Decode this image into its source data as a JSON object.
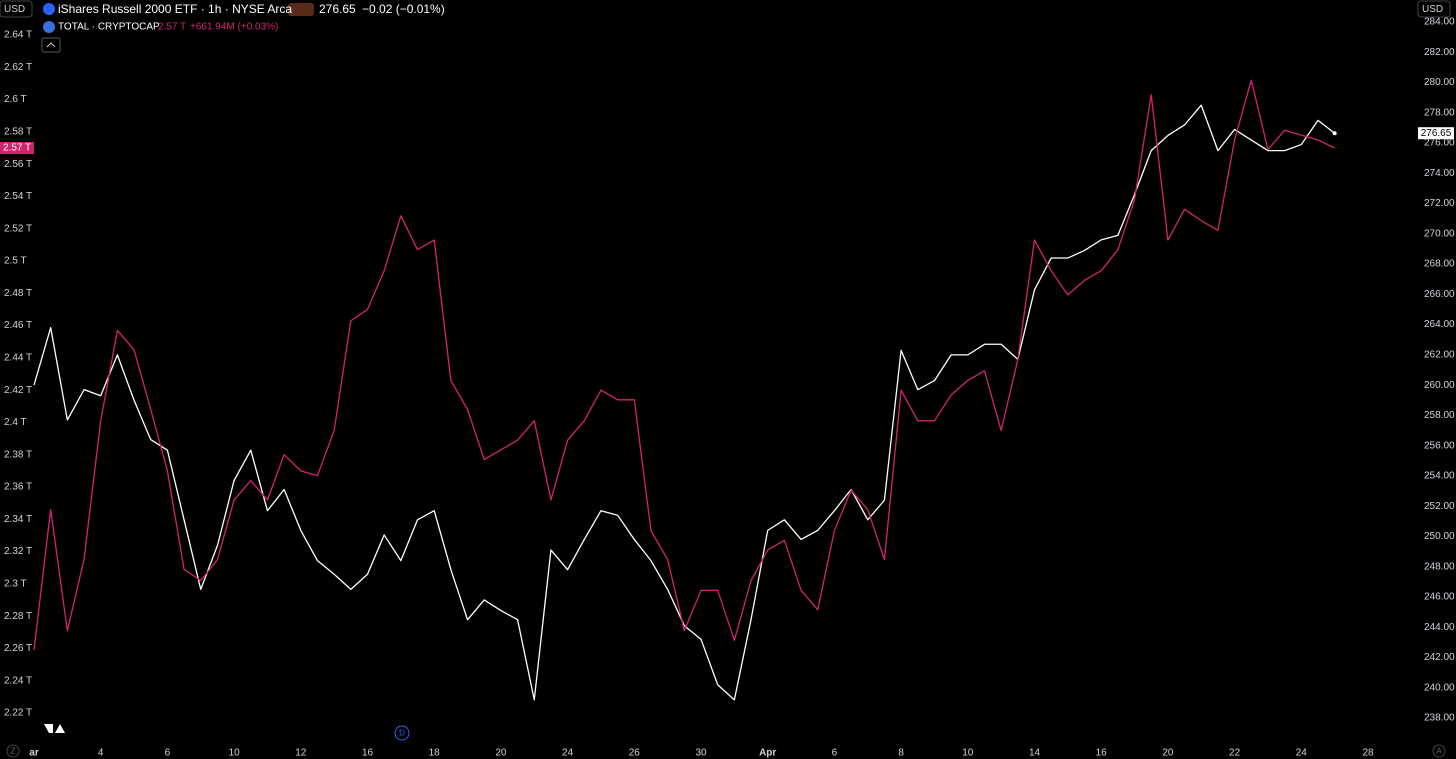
{
  "chart_data": {
    "type": "line",
    "currency": "USD",
    "categories": [
      "ar",
      null,
      null,
      null,
      "4",
      null,
      null,
      null,
      "6",
      null,
      null,
      null,
      "10",
      null,
      null,
      null,
      "12",
      null,
      null,
      null,
      "16",
      null,
      null,
      null,
      "18",
      null,
      null,
      null,
      "20",
      null,
      null,
      null,
      "24",
      null,
      null,
      null,
      "26",
      null,
      null,
      null,
      "30",
      null,
      null,
      null,
      "Apr",
      null,
      null,
      null,
      "6",
      null,
      null,
      null,
      "8",
      null,
      null,
      null,
      "10",
      null,
      null,
      null,
      "14",
      null,
      null,
      null,
      "16",
      null,
      null,
      null,
      "20",
      null,
      null,
      null,
      "22",
      null,
      null,
      null,
      "24",
      null,
      null,
      null,
      "28"
    ],
    "series": [
      {
        "name": "iShares Russell 2000 ETF · 1h · NYSE Arca",
        "color": "#ffffff",
        "axis": "y2",
        "last": 276.65,
        "change": "−0.02 (−0.01%)",
        "values": [
          260.0,
          263.8,
          257.7,
          259.7,
          259.3,
          262.0,
          259.0,
          256.4,
          255.7,
          251.1,
          246.5,
          249.4,
          253.7,
          255.7,
          251.7,
          253.1,
          250.4,
          248.4,
          247.5,
          246.5,
          247.5,
          250.1,
          248.4,
          251.1,
          251.7,
          247.8,
          244.5,
          245.8,
          245.1,
          244.5,
          239.2,
          249.1,
          247.8,
          249.8,
          251.7,
          251.4,
          249.8,
          248.4,
          246.5,
          244.1,
          243.2,
          240.2,
          239.2,
          244.5,
          250.4,
          251.1,
          249.8,
          250.4,
          251.7,
          253.1,
          251.1,
          252.4,
          262.3,
          259.7,
          260.3,
          262.0,
          262.0,
          262.7,
          262.7,
          261.7,
          266.3,
          268.4,
          268.4,
          268.9,
          269.6,
          269.9,
          272.6,
          275.5,
          276.5,
          277.2,
          278.5,
          275.5,
          276.9,
          276.2,
          275.5,
          275.5,
          275.9,
          277.5,
          276.65,
          null,
          null
        ]
      },
      {
        "name": "TOTAL · CRYPTOCAP",
        "color": "#d0256e",
        "axis": "y",
        "last": "2.57 T",
        "change": "+661.94M (+0.03%)",
        "values": [
          2.259,
          2.346,
          2.271,
          2.315,
          2.401,
          2.457,
          2.445,
          2.408,
          2.37,
          2.309,
          2.302,
          2.315,
          2.352,
          2.364,
          2.352,
          2.38,
          2.37,
          2.367,
          2.395,
          2.463,
          2.47,
          2.494,
          2.528,
          2.507,
          2.513,
          2.426,
          2.408,
          2.377,
          2.383,
          2.389,
          2.401,
          2.352,
          2.389,
          2.401,
          2.42,
          2.414,
          2.414,
          2.333,
          2.315,
          2.271,
          2.296,
          2.296,
          2.265,
          2.302,
          2.321,
          2.327,
          2.296,
          2.284,
          2.333,
          2.358,
          2.346,
          2.315,
          2.42,
          2.401,
          2.401,
          2.417,
          2.426,
          2.432,
          2.395,
          2.439,
          2.513,
          2.494,
          2.479,
          2.488,
          2.494,
          2.507,
          2.538,
          2.603,
          2.513,
          2.532,
          2.525,
          2.519,
          2.575,
          2.612,
          2.569,
          2.581,
          2.578,
          2.575,
          2.57,
          null,
          null
        ]
      }
    ],
    "ylim": [
      2.22,
      2.64
    ],
    "yticks": [
      {
        "value": 2.22,
        "label": "2.22 T"
      },
      {
        "value": 2.24,
        "label": "2.24 T"
      },
      {
        "value": 2.26,
        "label": "2.26 T"
      },
      {
        "value": 2.28,
        "label": "2.28 T"
      },
      {
        "value": 2.3,
        "label": "2.3 T"
      },
      {
        "value": 2.32,
        "label": "2.32 T"
      },
      {
        "value": 2.34,
        "label": "2.34 T"
      },
      {
        "value": 2.36,
        "label": "2.36 T"
      },
      {
        "value": 2.38,
        "label": "2.38 T"
      },
      {
        "value": 2.4,
        "label": "2.4 T"
      },
      {
        "value": 2.42,
        "label": "2.42 T"
      },
      {
        "value": 2.44,
        "label": "2.44 T"
      },
      {
        "value": 2.46,
        "label": "2.46 T"
      },
      {
        "value": 2.48,
        "label": "2.48 T"
      },
      {
        "value": 2.5,
        "label": "2.5 T"
      },
      {
        "value": 2.52,
        "label": "2.52 T"
      },
      {
        "value": 2.54,
        "label": "2.54 T"
      },
      {
        "value": 2.56,
        "label": "2.56 T"
      },
      {
        "value": 2.58,
        "label": "2.58 T"
      },
      {
        "value": 2.6,
        "label": "2.6 T"
      },
      {
        "value": 2.62,
        "label": "2.62 T"
      },
      {
        "value": 2.64,
        "label": "2.64 T"
      }
    ],
    "y2lim": [
      238,
      284
    ],
    "y2ticks": [
      {
        "value": 238,
        "label": "238.00"
      },
      {
        "value": 240,
        "label": "240.00"
      },
      {
        "value": 242,
        "label": "242.00"
      },
      {
        "value": 244,
        "label": "244.00"
      },
      {
        "value": 246,
        "label": "246.00"
      },
      {
        "value": 248,
        "label": "248.00"
      },
      {
        "value": 250,
        "label": "250.00"
      },
      {
        "value": 252,
        "label": "252.00"
      },
      {
        "value": 254,
        "label": "254.00"
      },
      {
        "value": 256,
        "label": "256.00"
      },
      {
        "value": 258,
        "label": "258.00"
      },
      {
        "value": 260,
        "label": "260.00"
      },
      {
        "value": 262,
        "label": "262.00"
      },
      {
        "value": 264,
        "label": "264.00"
      },
      {
        "value": 266,
        "label": "266.00"
      },
      {
        "value": 268,
        "label": "268.00"
      },
      {
        "value": 270,
        "label": "270.00"
      },
      {
        "value": 272,
        "label": "272.00"
      },
      {
        "value": 274,
        "label": "274.00"
      },
      {
        "value": 276,
        "label": "276.00"
      },
      {
        "value": 278,
        "label": "278.00"
      },
      {
        "value": 280,
        "label": "280.00"
      },
      {
        "value": 282,
        "label": "282.00"
      },
      {
        "value": 284,
        "label": "284.00"
      }
    ],
    "grid": false
  },
  "ui": {
    "scale_left": "Z",
    "scale_right": "A",
    "event_marker": "D"
  }
}
